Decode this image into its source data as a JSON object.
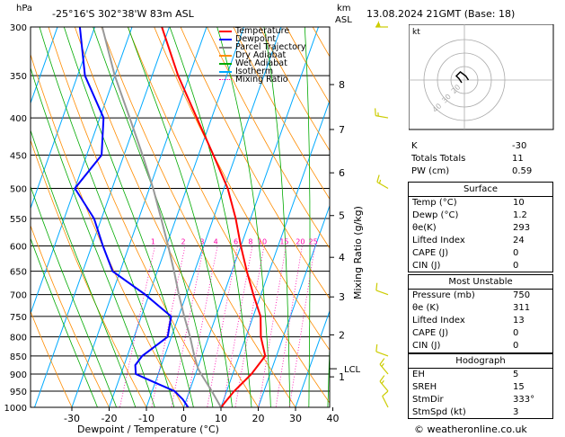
{
  "header": {
    "hpa_label": "hPa",
    "location": "-25°16'S  302°38'W  83m  ASL",
    "km_label": "km",
    "asl_label": "ASL",
    "datetime": "13.08.2024  21GMT  (Base: 18)"
  },
  "legend": {
    "items": [
      {
        "label": "Temperature",
        "color": "#ff0000",
        "style": "solid"
      },
      {
        "label": "Dewpoint",
        "color": "#0000ff",
        "style": "solid"
      },
      {
        "label": "Parcel Trajectory",
        "color": "#808080",
        "style": "solid"
      },
      {
        "label": "Dry Adiabat",
        "color": "#ff8c00",
        "style": "solid"
      },
      {
        "label": "Wet Adiabat",
        "color": "#00aa00",
        "style": "solid"
      },
      {
        "label": "Isotherm",
        "color": "#00aaff",
        "style": "solid"
      },
      {
        "label": "Mixing Ratio",
        "color": "#ff00aa",
        "style": "dotted"
      }
    ]
  },
  "chart_data": {
    "type": "line",
    "title": "",
    "xlabel": "Dewpoint / Temperature (°C)",
    "ylabel": "Mixing Ratio (g/kg)",
    "pressure_levels": [
      300,
      350,
      400,
      450,
      500,
      550,
      600,
      650,
      700,
      750,
      800,
      850,
      900,
      950,
      1000
    ],
    "x_ticks": [
      -30,
      -20,
      -10,
      0,
      10,
      20,
      30,
      40
    ],
    "xlim": [
      -40,
      40
    ],
    "ylim": [
      1000,
      300
    ],
    "km_ticks": [
      {
        "km": 1,
        "p": 908
      },
      {
        "km": 2,
        "p": 795
      },
      {
        "km": 3,
        "p": 705
      },
      {
        "km": 4,
        "p": 622
      },
      {
        "km": 5,
        "p": 545
      },
      {
        "km": 6,
        "p": 476
      },
      {
        "km": 7,
        "p": 415
      },
      {
        "km": 8,
        "p": 360
      }
    ],
    "lcl": {
      "label": "LCL",
      "p": 885
    },
    "mixing_ratio_labels": [
      "1",
      "2",
      "3",
      "4",
      "6",
      "8",
      "10",
      "15",
      "20",
      "25"
    ],
    "series": [
      {
        "name": "Temperature",
        "p": [
          1000,
          950,
          900,
          850,
          800,
          750,
          700,
          650,
          600,
          550,
          500,
          450,
          400,
          350,
          300
        ],
        "t": [
          10,
          12,
          15,
          17,
          14,
          12,
          8,
          4,
          0,
          -4,
          -9,
          -16,
          -24,
          -33,
          -42
        ]
      },
      {
        "name": "Dewpoint",
        "p": [
          1000,
          975,
          950,
          925,
          900,
          875,
          850,
          800,
          750,
          700,
          650,
          600,
          550,
          500,
          450,
          400,
          350,
          300
        ],
        "t": [
          1.2,
          -1,
          -4,
          -10,
          -16,
          -17,
          -16,
          -11,
          -12,
          -21,
          -32,
          -37,
          -42,
          -50,
          -46,
          -49,
          -58,
          -64
        ]
      },
      {
        "name": "Parcel Trajectory",
        "p": [
          1000,
          950,
          900,
          885,
          850,
          800,
          750,
          700,
          650,
          600,
          550,
          500,
          450,
          400,
          350,
          300
        ],
        "t": [
          10,
          6,
          1.5,
          0.2,
          -2,
          -5,
          -8.5,
          -12,
          -15.5,
          -19.5,
          -24,
          -29,
          -35,
          -42,
          -50,
          -58
        ]
      }
    ],
    "winds": [
      {
        "p": 300,
        "dir": 270,
        "spd": 55
      },
      {
        "p": 400,
        "dir": 280,
        "spd": 15
      },
      {
        "p": 500,
        "dir": 300,
        "spd": 15
      },
      {
        "p": 700,
        "dir": 290,
        "spd": 10
      },
      {
        "p": 850,
        "dir": 290,
        "spd": 10
      },
      {
        "p": 900,
        "dir": 320,
        "spd": 15
      },
      {
        "p": 950,
        "dir": 320,
        "spd": 15
      },
      {
        "p": 1000,
        "dir": 333,
        "spd": 10
      }
    ],
    "hodograph": {
      "label": "kt",
      "ring_labels": [
        "20",
        "30",
        "40"
      ],
      "u": [
        -2,
        -4,
        -6,
        -3,
        1,
        3
      ],
      "v": [
        -2,
        1,
        3,
        6,
        3,
        0
      ]
    }
  },
  "indices": {
    "top": [
      {
        "k": "K",
        "v": "-30"
      },
      {
        "k": "Totals Totals",
        "v": "11"
      },
      {
        "k": "PW (cm)",
        "v": "0.59"
      }
    ],
    "surface": {
      "title": "Surface",
      "rows": [
        {
          "k": "Temp (°C)",
          "v": "10"
        },
        {
          "k": "Dewp (°C)",
          "v": "1.2"
        },
        {
          "k": "θe(K)",
          "v": "293"
        },
        {
          "k": "Lifted Index",
          "v": "24"
        },
        {
          "k": "CAPE (J)",
          "v": "0"
        },
        {
          "k": "CIN (J)",
          "v": "0"
        }
      ]
    },
    "most_unstable": {
      "title": "Most Unstable",
      "rows": [
        {
          "k": "Pressure (mb)",
          "v": "750"
        },
        {
          "k": "θe (K)",
          "v": "311"
        },
        {
          "k": "Lifted Index",
          "v": "13"
        },
        {
          "k": "CAPE (J)",
          "v": "0"
        },
        {
          "k": "CIN (J)",
          "v": "0"
        }
      ]
    },
    "hodograph": {
      "title": "Hodograph",
      "rows": [
        {
          "k": "EH",
          "v": "5"
        },
        {
          "k": "SREH",
          "v": "15"
        },
        {
          "k": "StmDir",
          "v": "333°"
        },
        {
          "k": "StmSpd (kt)",
          "v": "3"
        }
      ]
    }
  },
  "footer": {
    "copyright": "© weatheronline.co.uk"
  }
}
